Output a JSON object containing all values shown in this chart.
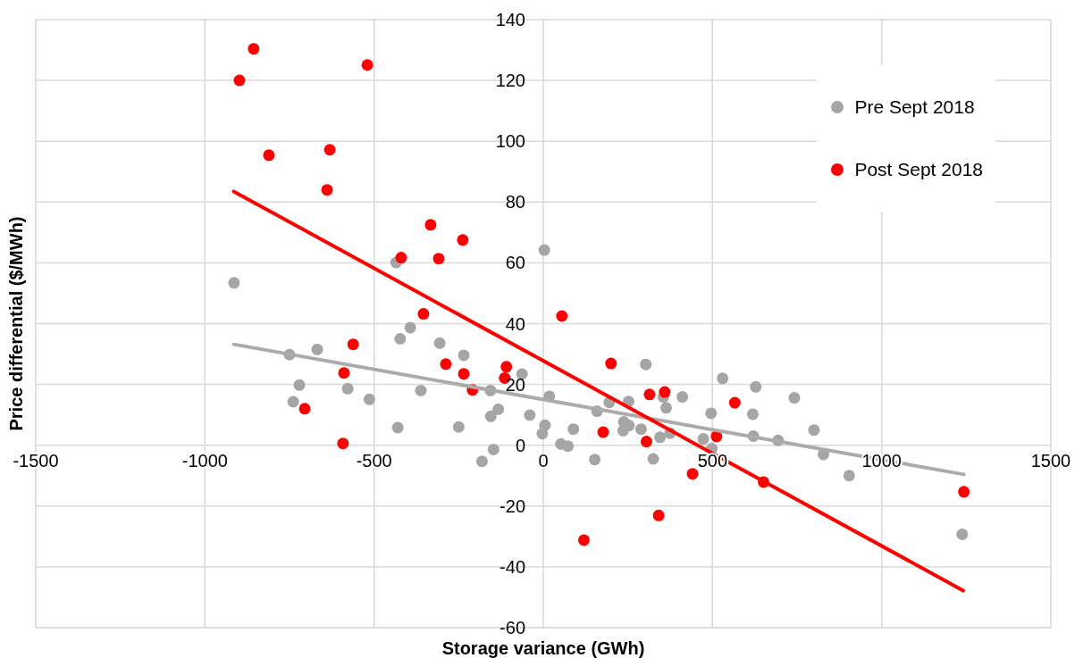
{
  "chart_data": {
    "type": "scatter",
    "xlabel": "Storage variance (GWh)",
    "ylabel": "Price differential ($/MWh)",
    "xlim": [
      -1500,
      1500
    ],
    "xticks": [
      -1500,
      -1000,
      -500,
      0,
      500,
      1000,
      1500
    ],
    "ylim": [
      -60,
      140
    ],
    "yticks": [
      -60,
      -40,
      -20,
      0,
      20,
      40,
      60,
      80,
      100,
      120,
      140
    ],
    "grid": true,
    "legend": "top right",
    "series": [
      {
        "name": "Pre Sept 2018",
        "color": "#a5a5a5",
        "marker": "circle",
        "x": [
          -914,
          -435,
          3,
          -750,
          -668,
          -721,
          -739,
          -578,
          -514,
          -423,
          -393,
          -430,
          -362,
          -306,
          -235,
          -250,
          -181,
          -156,
          -147,
          -155,
          -133,
          -63,
          -40,
          5,
          -3,
          18,
          52,
          73,
          89,
          152,
          159,
          195,
          252,
          238,
          253,
          236,
          281,
          289,
          303,
          325,
          345,
          355,
          363,
          375,
          411,
          473,
          496,
          498,
          530,
          619,
          628,
          621,
          694,
          742,
          800,
          828,
          904,
          1238
        ],
        "values": [
          53.4,
          60.1,
          64.2,
          29.8,
          31.5,
          19.8,
          14.3,
          18.6,
          15.1,
          35.0,
          38.7,
          5.8,
          18.0,
          33.6,
          29.6,
          6.0,
          -5.3,
          18.0,
          -1.4,
          9.5,
          11.8,
          23.4,
          9.9,
          6.6,
          3.8,
          16.1,
          0.4,
          -0.3,
          5.3,
          -4.7,
          11.2,
          14.1,
          14.4,
          7.7,
          6.5,
          4.8,
          null,
          5.3,
          26.6,
          -4.5,
          2.6,
          15.9,
          12.3,
          4.0,
          15.9,
          2.1,
          10.5,
          -1.1,
          22.0,
          10.2,
          19.2,
          3.0,
          1.6,
          15.6,
          5.0,
          -3.0,
          -10.0,
          -29.3
        ]
      },
      {
        "name": "Post Sept 2018",
        "color": "#ff0000",
        "marker": "circle",
        "x": [
          -898,
          -856,
          -811,
          -631,
          -639,
          -520,
          -420,
          -333,
          -309,
          -238,
          -354,
          -562,
          -589,
          -705,
          -592,
          -288,
          -235,
          -209,
          -109,
          -114,
          55,
          200,
          177,
          314,
          359,
          305,
          341,
          120,
          441,
          512,
          566,
          651,
          1243
        ],
        "values": [
          120.0,
          130.4,
          95.4,
          97.2,
          84.0,
          125.1,
          61.7,
          72.5,
          61.4,
          67.5,
          43.2,
          33.2,
          23.8,
          12.0,
          0.6,
          26.7,
          23.5,
          18.2,
          25.8,
          22.1,
          42.5,
          26.9,
          4.3,
          16.7,
          17.5,
          1.2,
          -23.1,
          -31.2,
          -9.4,
          2.9,
          14.0,
          -12.1,
          -15.3
        ]
      },
      {
        "type": "line",
        "color": "#aeaaaa",
        "marker": "none",
        "x": [
          -915,
          1243
        ],
        "values": [
          33.2,
          -9.6
        ]
      },
      {
        "type": "line",
        "color": "#ff0000",
        "marker": "none",
        "x": [
          -915,
          1241
        ],
        "values": [
          83.5,
          -47.8
        ]
      }
    ]
  }
}
